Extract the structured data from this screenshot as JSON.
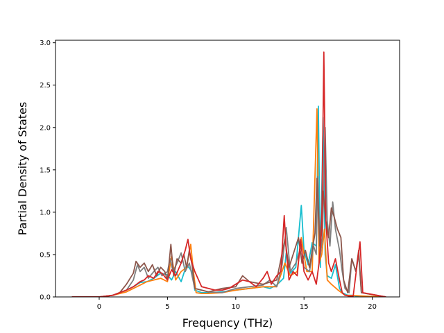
{
  "chart_data": {
    "type": "line",
    "title": "",
    "xlabel": "Frequency (THz)",
    "ylabel": "Partial Density of States",
    "xlim": [
      -3.2,
      22.0
    ],
    "ylim": [
      0.0,
      3.03
    ],
    "xticks": [
      0,
      5,
      10,
      15,
      20
    ],
    "xtick_labels": [
      "0",
      "5",
      "10",
      "15",
      "20"
    ],
    "yticks": [
      0.0,
      0.5,
      1.0,
      1.5,
      2.0,
      2.5,
      3.0
    ],
    "ytick_labels": [
      "0.0",
      "0.5",
      "1.0",
      "1.5",
      "2.0",
      "2.5",
      "3.0"
    ],
    "grid": false,
    "legend": "none",
    "series": [
      {
        "color": "#17becf",
        "x": [
          -2.0,
          0.0,
          0.5,
          1.0,
          1.5,
          2.0,
          2.5,
          3.0,
          3.5,
          4.0,
          4.5,
          5.0,
          5.3,
          5.6,
          6.0,
          6.4,
          6.8,
          7.0,
          7.5,
          8.0,
          9.0,
          10.0,
          11.0,
          12.0,
          12.5,
          13.0,
          13.5,
          13.7,
          14.0,
          14.4,
          14.8,
          15.0,
          15.3,
          15.6,
          15.9,
          16.05,
          16.2,
          16.4,
          16.55,
          16.7,
          17.0,
          17.3,
          17.6,
          17.8,
          18.2,
          18.5,
          18.8,
          19.0,
          19.3,
          21.0
        ],
        "y": [
          0,
          0,
          0.01,
          0.02,
          0.05,
          0.08,
          0.12,
          0.17,
          0.18,
          0.22,
          0.28,
          0.26,
          0.2,
          0.3,
          0.18,
          0.38,
          0.3,
          0.08,
          0.05,
          0.05,
          0.06,
          0.08,
          0.1,
          0.12,
          0.1,
          0.14,
          0.22,
          0.52,
          0.28,
          0.35,
          1.08,
          0.55,
          0.38,
          0.64,
          0.6,
          2.25,
          0.35,
          2.12,
          0.5,
          0.25,
          0.22,
          0.38,
          0.1,
          0.05,
          0.02,
          0.02,
          0.01,
          0.0,
          0,
          0
        ]
      },
      {
        "color": "#ff7f0e",
        "x": [
          -2.0,
          0.0,
          1.0,
          2.0,
          2.5,
          3.0,
          3.5,
          4.0,
          4.5,
          5.0,
          5.3,
          5.6,
          6.0,
          6.4,
          6.7,
          6.9,
          7.1,
          7.5,
          8.0,
          9.0,
          10.0,
          11.0,
          12.0,
          13.0,
          13.6,
          14.0,
          14.5,
          14.8,
          15.2,
          15.6,
          15.95,
          16.1,
          16.3,
          16.5,
          16.7,
          17.0,
          17.5,
          18.0,
          21.0
        ],
        "y": [
          0,
          0,
          0.02,
          0.06,
          0.1,
          0.14,
          0.18,
          0.2,
          0.22,
          0.18,
          0.48,
          0.2,
          0.3,
          0.35,
          0.62,
          0.3,
          0.05,
          0.04,
          0.04,
          0.05,
          0.08,
          0.1,
          0.12,
          0.12,
          0.4,
          0.25,
          0.3,
          0.7,
          0.3,
          0.3,
          2.22,
          0.4,
          0.5,
          0.8,
          0.2,
          0.15,
          0.08,
          0.02,
          0
        ]
      },
      {
        "color": "#7f7f7f",
        "x": [
          -2.0,
          0.0,
          1.0,
          1.5,
          2.0,
          2.5,
          2.8,
          3.0,
          3.3,
          3.6,
          4.0,
          4.3,
          4.6,
          5.0,
          5.2,
          5.4,
          5.7,
          6.0,
          6.3,
          6.6,
          7.0,
          7.5,
          8.0,
          9.0,
          10.0,
          11.0,
          12.0,
          12.5,
          13.0,
          13.4,
          13.7,
          14.0,
          14.4,
          14.8,
          15.0,
          15.4,
          15.7,
          15.9,
          16.0,
          16.2,
          16.35,
          16.55,
          16.7,
          16.9,
          17.1,
          17.3,
          17.6,
          17.8,
          18.0,
          18.3,
          18.5,
          18.8,
          19.0,
          19.2,
          21.0
        ],
        "y": [
          0,
          0,
          0.02,
          0.05,
          0.08,
          0.2,
          0.38,
          0.3,
          0.35,
          0.22,
          0.3,
          0.35,
          0.25,
          0.3,
          0.45,
          0.3,
          0.4,
          0.52,
          0.3,
          0.4,
          0.1,
          0.08,
          0.06,
          0.05,
          0.1,
          0.12,
          0.14,
          0.2,
          0.12,
          0.38,
          0.82,
          0.3,
          0.4,
          0.6,
          0.35,
          0.3,
          0.6,
          0.5,
          1.42,
          0.5,
          0.7,
          2.0,
          0.9,
          0.6,
          1.12,
          0.8,
          0.55,
          0.3,
          0.1,
          0.05,
          0.45,
          0.3,
          0.5,
          0.05,
          0
        ]
      },
      {
        "color": "#8c564b",
        "x": [
          -2.0,
          0.0,
          1.0,
          1.5,
          2.0,
          2.5,
          2.7,
          3.0,
          3.3,
          3.6,
          3.9,
          4.2,
          4.5,
          4.8,
          5.0,
          5.25,
          5.45,
          5.7,
          6.0,
          6.2,
          6.4,
          6.6,
          6.8,
          7.0,
          7.5,
          8.0,
          9.0,
          10.0,
          10.5,
          11.0,
          12.0,
          13.0,
          13.6,
          13.9,
          14.2,
          14.6,
          14.85,
          15.1,
          15.4,
          15.8,
          15.95,
          16.15,
          16.4,
          16.6,
          16.8,
          17.0,
          17.2,
          17.45,
          17.7,
          17.9,
          18.2,
          18.5,
          18.8,
          19.0,
          19.2,
          21.0
        ],
        "y": [
          0,
          0,
          0.02,
          0.05,
          0.15,
          0.28,
          0.42,
          0.35,
          0.4,
          0.3,
          0.38,
          0.25,
          0.35,
          0.3,
          0.2,
          0.62,
          0.25,
          0.45,
          0.4,
          0.5,
          0.35,
          0.55,
          0.38,
          0.1,
          0.08,
          0.06,
          0.1,
          0.12,
          0.25,
          0.18,
          0.15,
          0.2,
          0.68,
          0.35,
          0.5,
          0.7,
          0.4,
          0.55,
          0.35,
          0.75,
          1.4,
          0.6,
          1.25,
          0.9,
          0.7,
          1.05,
          0.95,
          0.8,
          0.7,
          0.2,
          0.05,
          0.45,
          0.3,
          0.55,
          0.05,
          0
        ]
      },
      {
        "color": "#d62728",
        "x": [
          -2.0,
          0.0,
          1.0,
          1.5,
          2.0,
          2.5,
          3.0,
          3.3,
          3.6,
          4.0,
          4.3,
          4.6,
          5.0,
          5.3,
          5.6,
          6.0,
          6.3,
          6.5,
          6.7,
          7.0,
          7.5,
          8.0,
          8.5,
          9.0,
          9.5,
          10.0,
          10.5,
          11.0,
          11.5,
          12.0,
          12.3,
          12.6,
          13.0,
          13.3,
          13.55,
          13.7,
          13.9,
          14.2,
          14.5,
          14.75,
          15.0,
          15.3,
          15.6,
          15.9,
          16.1,
          16.3,
          16.45,
          16.6,
          16.8,
          17.0,
          17.3,
          17.6,
          17.8,
          18.0,
          18.3,
          18.6,
          18.9,
          19.1,
          19.3,
          21.0
        ],
        "y": [
          0,
          0,
          0.02,
          0.05,
          0.08,
          0.12,
          0.18,
          0.2,
          0.25,
          0.22,
          0.3,
          0.28,
          0.2,
          0.32,
          0.25,
          0.4,
          0.55,
          0.68,
          0.45,
          0.3,
          0.12,
          0.1,
          0.08,
          0.08,
          0.1,
          0.15,
          0.2,
          0.18,
          0.12,
          0.22,
          0.3,
          0.15,
          0.25,
          0.3,
          0.96,
          0.55,
          0.2,
          0.3,
          0.25,
          0.68,
          0.3,
          0.2,
          0.3,
          0.15,
          0.4,
          0.8,
          2.89,
          0.9,
          0.4,
          0.3,
          0.45,
          0.2,
          0.05,
          0.02,
          0.01,
          0.01,
          0.4,
          0.65,
          0.05,
          0
        ]
      }
    ]
  }
}
